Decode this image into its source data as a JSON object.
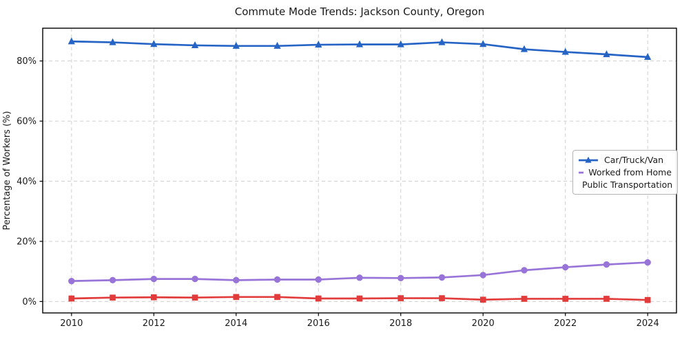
{
  "chart_data": {
    "type": "line",
    "title": "Commute Mode Trends: Jackson County, Oregon",
    "xlabel": "",
    "ylabel": "Percentage of Workers (%)",
    "x": [
      2010,
      2011,
      2012,
      2013,
      2014,
      2015,
      2016,
      2017,
      2018,
      2019,
      2020,
      2021,
      2022,
      2023,
      2024
    ],
    "series": [
      {
        "name": "Car/Truck/Van",
        "color": "#2563c4",
        "marker": "triangle",
        "values": [
          86.5,
          86.2,
          85.6,
          85.2,
          85.0,
          85.0,
          85.4,
          85.5,
          85.5,
          86.2,
          85.6,
          83.9,
          83.0,
          82.2,
          81.3
        ]
      },
      {
        "name": "Worked from Home",
        "color": "#9874d8",
        "marker": "circle",
        "values": [
          6.8,
          7.1,
          7.5,
          7.5,
          7.1,
          7.3,
          7.3,
          7.9,
          7.8,
          8.0,
          8.8,
          10.4,
          11.4,
          12.3,
          13.0
        ]
      },
      {
        "name": "Public Transportation",
        "color": "#e23b3b",
        "marker": "square",
        "values": [
          1.0,
          1.3,
          1.4,
          1.3,
          1.5,
          1.5,
          1.0,
          1.0,
          1.1,
          1.1,
          0.6,
          0.9,
          0.9,
          0.9,
          0.5
        ]
      }
    ],
    "xticks": [
      2010,
      2012,
      2014,
      2016,
      2018,
      2020,
      2022,
      2024
    ],
    "yticks": [
      0,
      20,
      40,
      60,
      80
    ],
    "ytick_labels": [
      "0%",
      "20%",
      "40%",
      "60%",
      "80%"
    ],
    "xlim": [
      2009.3,
      2024.7
    ],
    "ylim": [
      -3.8,
      90.9
    ],
    "grid": true,
    "legend_position": "center right"
  }
}
